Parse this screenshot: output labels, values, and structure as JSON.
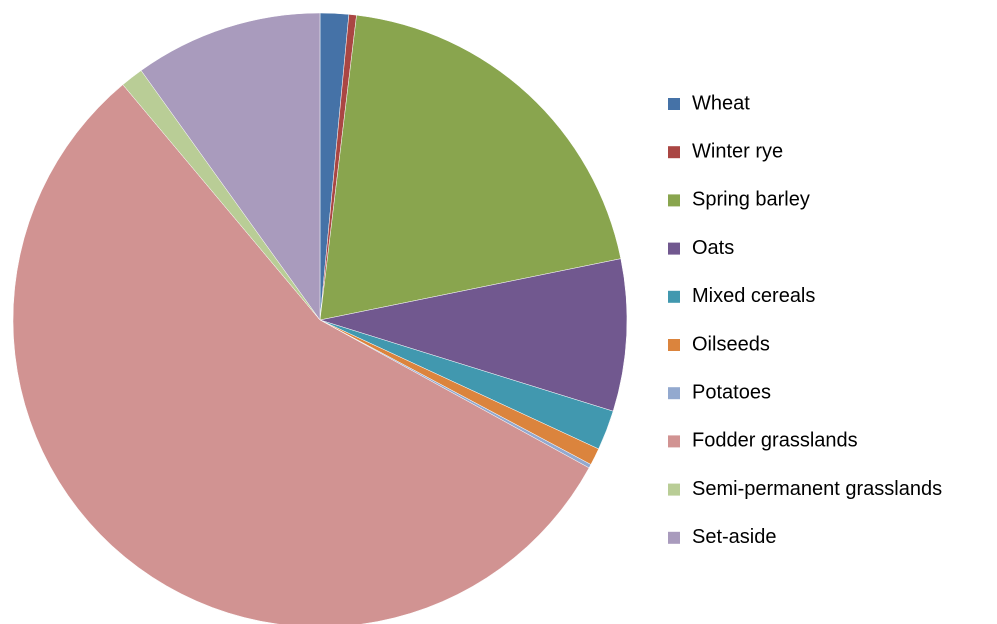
{
  "chart_data": {
    "type": "pie",
    "categories": [
      "Wheat",
      "Winter rye",
      "Spring barley",
      "Oats",
      "Mixed cereals",
      "Oilseeds",
      "Potatoes",
      "Fodder grasslands",
      "Semi-permanent grasslands",
      "Set-aside"
    ],
    "values": [
      1.5,
      0.4,
      19.9,
      8.0,
      2.1,
      0.9,
      0.2,
      55.9,
      1.2,
      9.9
    ],
    "colors": [
      "#4572A7",
      "#AA4643",
      "#89A54E",
      "#71588F",
      "#4198AF",
      "#DB843D",
      "#93A9CF",
      "#D19392",
      "#B9CD96",
      "#A99BBD"
    ],
    "legend": "right"
  }
}
